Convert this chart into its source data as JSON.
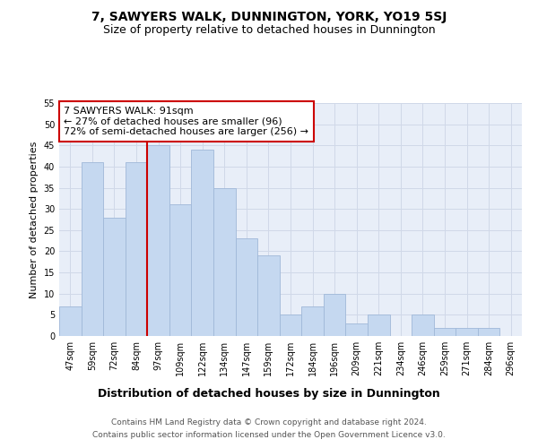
{
  "title": "7, SAWYERS WALK, DUNNINGTON, YORK, YO19 5SJ",
  "subtitle": "Size of property relative to detached houses in Dunnington",
  "xlabel": "Distribution of detached houses by size in Dunnington",
  "ylabel": "Number of detached properties",
  "categories": [
    "47sqm",
    "59sqm",
    "72sqm",
    "84sqm",
    "97sqm",
    "109sqm",
    "122sqm",
    "134sqm",
    "147sqm",
    "159sqm",
    "172sqm",
    "184sqm",
    "196sqm",
    "209sqm",
    "221sqm",
    "234sqm",
    "246sqm",
    "259sqm",
    "271sqm",
    "284sqm",
    "296sqm"
  ],
  "values": [
    7,
    41,
    28,
    41,
    45,
    31,
    44,
    35,
    23,
    19,
    5,
    7,
    10,
    3,
    5,
    0,
    5,
    2,
    2,
    2,
    0
  ],
  "bar_color": "#c5d8f0",
  "bar_edge_color": "#a0b8d8",
  "vline_x_index": 3,
  "vline_color": "#cc0000",
  "annotation_text": "7 SAWYERS WALK: 91sqm\n← 27% of detached houses are smaller (96)\n72% of semi-detached houses are larger (256) →",
  "annotation_box_color": "#ffffff",
  "annotation_box_edge": "#cc0000",
  "ylim": [
    0,
    55
  ],
  "yticks": [
    0,
    5,
    10,
    15,
    20,
    25,
    30,
    35,
    40,
    45,
    50,
    55
  ],
  "grid_color": "#d0d8e8",
  "background_color": "#e8eef8",
  "footer_text": "Contains HM Land Registry data © Crown copyright and database right 2024.\nContains public sector information licensed under the Open Government Licence v3.0.",
  "title_fontsize": 10,
  "subtitle_fontsize": 9,
  "xlabel_fontsize": 9,
  "ylabel_fontsize": 8,
  "tick_fontsize": 7,
  "annotation_fontsize": 8,
  "footer_fontsize": 6.5
}
